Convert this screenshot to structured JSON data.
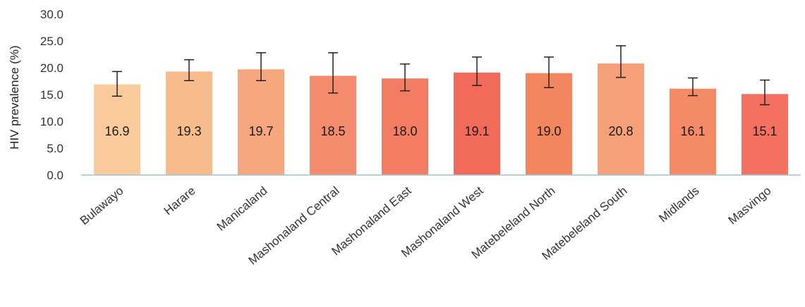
{
  "chart_data": {
    "type": "bar",
    "title": "",
    "xlabel": "",
    "ylabel": "HIV prevalence (%)",
    "ylim": [
      0,
      30
    ],
    "yticks": [
      "0.0",
      "5.0",
      "10.0",
      "15.0",
      "20.0",
      "25.0",
      "30.0"
    ],
    "grid": false,
    "legend": "none",
    "categories": [
      "Bulawayo",
      "Harare",
      "Manicaland",
      "Mashonaland Central",
      "Mashonaland East",
      "Mashonaland West",
      "Matebeleland North",
      "Matebeleland South",
      "Midlands",
      "Masvingo"
    ],
    "values": [
      16.9,
      19.3,
      19.7,
      18.5,
      18.0,
      19.1,
      19.0,
      20.8,
      16.1,
      15.1
    ],
    "labels": [
      "16.9",
      "19.3",
      "19.7",
      "18.5",
      "18.0",
      "19.1",
      "19.0",
      "20.8",
      "16.1",
      "15.1"
    ],
    "error_low": [
      14.7,
      17.6,
      17.6,
      15.3,
      15.7,
      16.7,
      16.3,
      18.2,
      14.8,
      13.1
    ],
    "error_high": [
      19.3,
      21.5,
      22.8,
      22.8,
      20.7,
      22.0,
      22.0,
      24.1,
      18.1,
      17.7
    ],
    "colors": [
      "#f9cb9c",
      "#f8bc8c",
      "#f6a77d",
      "#f48b6c",
      "#f37d63",
      "#f16a5a",
      "#f3855f",
      "#f6a079",
      "#f58a67",
      "#f47060"
    ],
    "axis_color": "#9ec3cf",
    "error_color": "#222222"
  }
}
